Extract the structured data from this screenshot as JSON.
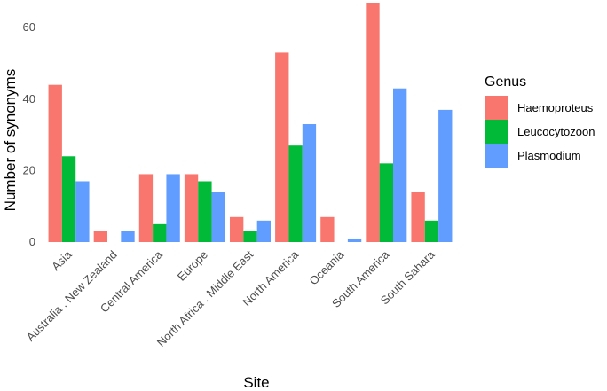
{
  "chart_data": {
    "type": "bar",
    "categories": [
      "Asia",
      "Australia . New Zealand",
      "Central America",
      "Europe",
      "North Africa . Middle East",
      "North America",
      "Oceania",
      "South America",
      "South Sahara"
    ],
    "series": [
      {
        "name": "Haemoproteus",
        "color": "#F8766D",
        "values": [
          44,
          3,
          19,
          19,
          7,
          53,
          7,
          67,
          14
        ]
      },
      {
        "name": "Leucocytozoon",
        "color": "#00BA38",
        "values": [
          24,
          0,
          5,
          17,
          3,
          27,
          0,
          22,
          6
        ]
      },
      {
        "name": "Plasmodium",
        "color": "#619CFF",
        "values": [
          17,
          3,
          19,
          14,
          6,
          33,
          1,
          43,
          37
        ]
      }
    ],
    "xlabel": "Site",
    "ylabel": "Number of synonyms",
    "ylim": [
      0,
      67
    ],
    "yticks": [
      0,
      20,
      40,
      60
    ],
    "grid": false,
    "legend": {
      "title": "Genus",
      "position": "right"
    }
  }
}
